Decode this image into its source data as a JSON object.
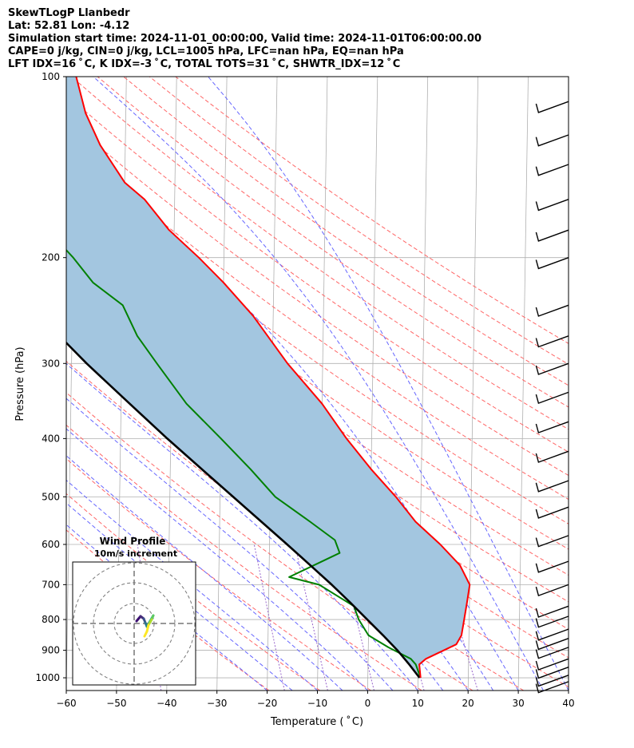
{
  "header": {
    "line1": "SkewTLogP Llanbedr",
    "line2": "Lat: 52.81   Lon: -4.12",
    "line3": "Simulation start time: 2024-11-01_00:00:00, Valid time: 2024-11-01T06:00:00.00",
    "line4": "CAPE=0 j/kg, CIN=0 j/kg, LCL=1005 hPa, LFC=nan hPa, EQ=nan hPa",
    "line5": "LFT IDX=16$^\\circ$C, K IDX=-3$^\\circ$C, TOTAL TOTS=31$^\\circ$C, SHWTR_IDX=12$^\\circ$C"
  },
  "header_display": {
    "line5": "LFT IDX=16 ˚ C, K IDX=-3 ˚ C, TOTAL TOTS=31 ˚ C, SHWTR_IDX=12 ˚ C"
  },
  "colors": {
    "temperature": "#ff0000",
    "dewpoint": "#008000",
    "parcel": "#000000",
    "cape_fill": "#a3c6e0",
    "dry_adiabat": "#ff6666",
    "moist_adiabat": "#6666ff",
    "mixing_ratio": "#9966cc",
    "isotherm": "#b0b0b0"
  },
  "chart_data": {
    "type": "line",
    "subtype": "skew-t log-p",
    "xlabel": "Temperature ($^\\circ$C)",
    "xlabel_display": "Temperature ( ˚ C)",
    "ylabel": "Pressure (hPa)",
    "xlim": [
      -60,
      40
    ],
    "ylim": [
      1050,
      100
    ],
    "y_scale": "log",
    "x_ticks": [
      -60,
      -50,
      -40,
      -30,
      -20,
      -10,
      0,
      10,
      20,
      30,
      40
    ],
    "x_tick_labels": [
      "−60",
      "−50",
      "−40",
      "−30",
      "−20",
      "−10",
      "0",
      "10",
      "20",
      "30",
      "40"
    ],
    "y_ticks": [
      100,
      200,
      300,
      400,
      500,
      600,
      700,
      800,
      900,
      1000
    ],
    "y_tick_labels": [
      "100",
      "200",
      "300",
      "400",
      "500",
      "600",
      "700",
      "800",
      "900",
      "1000"
    ],
    "grid": true,
    "series": [
      {
        "key": "temperature",
        "points": [
          [
            1000,
            10.5
          ],
          [
            950,
            10.2
          ],
          [
            930,
            11.5
          ],
          [
            880,
            17.5
          ],
          [
            850,
            18.5
          ],
          [
            800,
            19
          ],
          [
            750,
            19.5
          ],
          [
            700,
            20
          ],
          [
            650,
            18
          ],
          [
            600,
            14
          ],
          [
            550,
            9
          ],
          [
            500,
            5
          ],
          [
            450,
            0
          ],
          [
            400,
            -5
          ],
          [
            350,
            -10
          ],
          [
            300,
            -17
          ],
          [
            250,
            -24
          ],
          [
            220,
            -30
          ],
          [
            200,
            -35
          ],
          [
            180,
            -41
          ],
          [
            160,
            -46
          ],
          [
            150,
            -50
          ],
          [
            130,
            -55
          ],
          [
            115,
            -58
          ],
          [
            100,
            -60
          ]
        ]
      },
      {
        "key": "dewpoint",
        "points": [
          [
            1000,
            10.5
          ],
          [
            950,
            9.5
          ],
          [
            930,
            8.5
          ],
          [
            890,
            4
          ],
          [
            850,
            0
          ],
          [
            800,
            -2
          ],
          [
            760,
            -3
          ],
          [
            700,
            -10
          ],
          [
            680,
            -16
          ],
          [
            620,
            -6
          ],
          [
            590,
            -7
          ],
          [
            550,
            -12
          ],
          [
            500,
            -19
          ],
          [
            450,
            -24
          ],
          [
            400,
            -30
          ],
          [
            350,
            -37
          ],
          [
            300,
            -43
          ],
          [
            270,
            -47
          ],
          [
            240,
            -50
          ],
          [
            220,
            -56
          ],
          [
            200,
            -60
          ],
          [
            170,
            -68
          ],
          [
            150,
            -75
          ],
          [
            130,
            -85
          ],
          [
            115,
            -92
          ],
          [
            100,
            -100
          ]
        ]
      },
      {
        "key": "parcel",
        "points": [
          [
            1000,
            10.3
          ],
          [
            950,
            8.2
          ],
          [
            900,
            5.8
          ],
          [
            850,
            2.9
          ],
          [
            800,
            -0.3
          ],
          [
            750,
            -3.7
          ],
          [
            700,
            -7.5
          ],
          [
            650,
            -11.8
          ],
          [
            600,
            -16.5
          ],
          [
            550,
            -21.7
          ],
          [
            500,
            -27.4
          ],
          [
            450,
            -33.7
          ],
          [
            400,
            -40.7
          ],
          [
            350,
            -48.3
          ],
          [
            300,
            -57
          ],
          [
            250,
            -66.5
          ],
          [
            200,
            -77
          ],
          [
            150,
            -89
          ],
          [
            100,
            -104
          ]
        ]
      }
    ],
    "wind_barbs": [
      {
        "pressure": 1015,
        "speed_kt": 10,
        "direction": "NW"
      },
      {
        "pressure": 990,
        "speed_kt": 10,
        "direction": "NW"
      },
      {
        "pressure": 960,
        "speed_kt": 10,
        "direction": "NW"
      },
      {
        "pressure": 930,
        "speed_kt": 10,
        "direction": "NW"
      },
      {
        "pressure": 890,
        "speed_kt": 10,
        "direction": "NW"
      },
      {
        "pressure": 860,
        "speed_kt": 10,
        "direction": "NW"
      },
      {
        "pressure": 830,
        "speed_kt": 10,
        "direction": "NW"
      },
      {
        "pressure": 790,
        "speed_kt": 10,
        "direction": "NW"
      },
      {
        "pressure": 760,
        "speed_kt": 10,
        "direction": "NW"
      },
      {
        "pressure": 700,
        "speed_kt": 10,
        "direction": "NW"
      },
      {
        "pressure": 640,
        "speed_kt": 10,
        "direction": "NW"
      },
      {
        "pressure": 580,
        "speed_kt": 10,
        "direction": "NW"
      },
      {
        "pressure": 520,
        "speed_kt": 10,
        "direction": "NW"
      },
      {
        "pressure": 470,
        "speed_kt": 10,
        "direction": "NW"
      },
      {
        "pressure": 420,
        "speed_kt": 10,
        "direction": "NW"
      },
      {
        "pressure": 375,
        "speed_kt": 10,
        "direction": "NW"
      },
      {
        "pressure": 335,
        "speed_kt": 10,
        "direction": "NW"
      },
      {
        "pressure": 300,
        "speed_kt": 10,
        "direction": "NW"
      },
      {
        "pressure": 270,
        "speed_kt": 10,
        "direction": "NW"
      },
      {
        "pressure": 240,
        "speed_kt": 10,
        "direction": "NW"
      },
      {
        "pressure": 200,
        "speed_kt": 10,
        "direction": "NW"
      },
      {
        "pressure": 180,
        "speed_kt": 10,
        "direction": "NW"
      },
      {
        "pressure": 160,
        "speed_kt": 10,
        "direction": "NW"
      },
      {
        "pressure": 140,
        "speed_kt": 10,
        "direction": "NW"
      },
      {
        "pressure": 125,
        "speed_kt": 10,
        "direction": "NW"
      },
      {
        "pressure": 110,
        "speed_kt": 10,
        "direction": "NW"
      }
    ],
    "inset": {
      "title": "Wind Profile",
      "subtitle": "10m/s increment",
      "type": "hodograph"
    }
  }
}
